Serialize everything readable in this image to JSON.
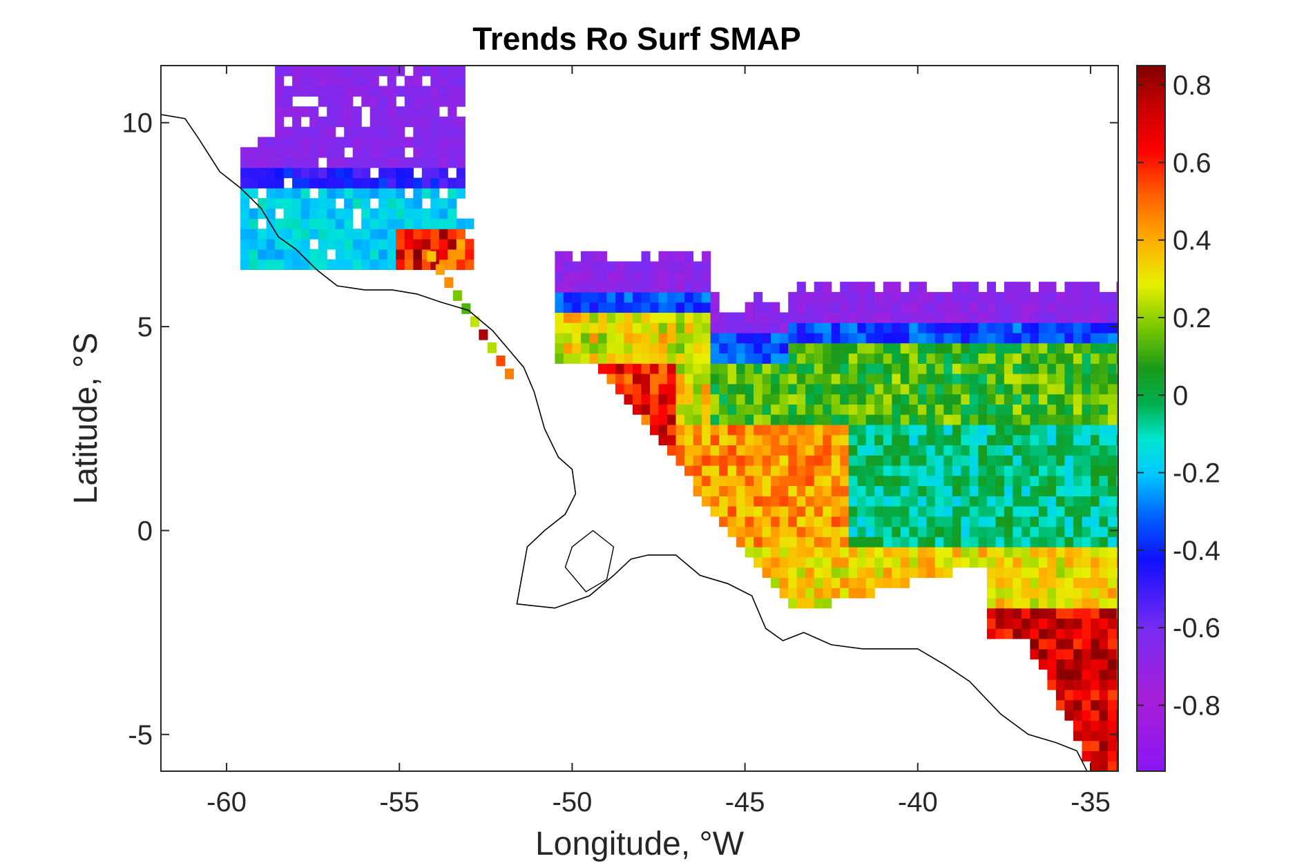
{
  "chart_data": {
    "type": "heatmap",
    "title": "Trends Ro Surf SMAP",
    "xlabel": "Longitude, °W",
    "ylabel": "Latitude, °S",
    "xlim": [
      -61.9,
      -34.2
    ],
    "ylim": [
      -5.9,
      11.4
    ],
    "x_ticks": [
      -60,
      -55,
      -50,
      -45,
      -40,
      -35
    ],
    "x_tick_labels": [
      "-60",
      "-55",
      "-50",
      "-45",
      "-40",
      "-35"
    ],
    "y_ticks": [
      -5,
      0,
      5,
      10
    ],
    "y_tick_labels": [
      "-5",
      "0",
      "5",
      "10"
    ],
    "colorbar": {
      "range": [
        -0.97,
        0.85
      ],
      "ticks": [
        0.8,
        0.6,
        0.4,
        0.2,
        0,
        -0.2,
        -0.4,
        -0.6,
        -0.8
      ],
      "tick_labels": [
        "0.8",
        "0.6",
        "0.4",
        "0.2",
        "0",
        "-0.2",
        "-0.4",
        "-0.6",
        "-0.8"
      ],
      "colormap": "jet-extended-purple"
    },
    "grid_resolution_deg": 0.25,
    "regions": [
      {
        "name": "",
        "lon_range": [
          -59.6,
          -53.2
        ],
        "lat_range": [
          6.4,
          11.4
        ],
        "trend_north": -0.75,
        "trend_south": -0.2
      },
      {
        "name": "",
        "lon_range": [
          -50.5,
          -34.2
        ],
        "lat_range": [
          -5.9,
          6.7
        ],
        "trend_north": -0.8,
        "trend_mid": 0.0,
        "trend_south": 0.7
      }
    ]
  }
}
